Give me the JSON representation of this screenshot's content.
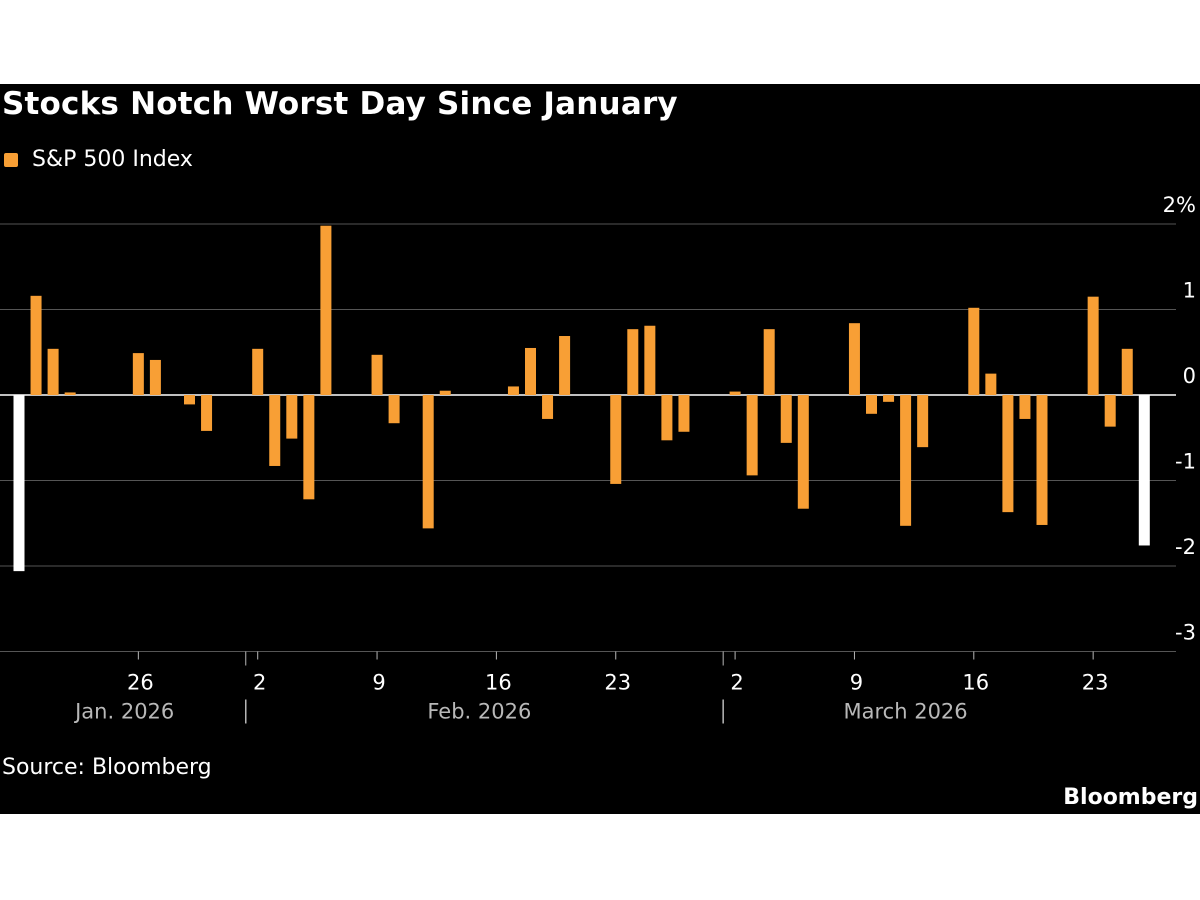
{
  "colors": {
    "background": "#000000",
    "bar": "#f89f35",
    "highlight_bar": "#ffffff",
    "grid": "#555555",
    "text": "#ffffff",
    "subtext": "#b8b8b8"
  },
  "footer": {
    "source": "Source: Bloomberg",
    "brand": "Bloomberg"
  },
  "chart_data": {
    "type": "bar",
    "title": "Stocks Notch Worst Day Since January",
    "legend": [
      {
        "name": "S&P 500 Index",
        "color": "#f89f35"
      }
    ],
    "ylim": [
      -3,
      2
    ],
    "yticks": [
      {
        "value": 2,
        "label": "2%"
      },
      {
        "value": 1,
        "label": "1"
      },
      {
        "value": 0,
        "label": "0"
      },
      {
        "value": -1,
        "label": "-1"
      },
      {
        "value": -2,
        "label": "-2"
      },
      {
        "value": -3,
        "label": "-3"
      }
    ],
    "xticks": [
      {
        "index": 7,
        "label": "26"
      },
      {
        "index": 14,
        "label": "2"
      },
      {
        "index": 21,
        "label": "9"
      },
      {
        "index": 28,
        "label": "16"
      },
      {
        "index": 35,
        "label": "23"
      },
      {
        "index": 42,
        "label": "2"
      },
      {
        "index": 49,
        "label": "9"
      },
      {
        "index": 56,
        "label": "16"
      },
      {
        "index": 63,
        "label": "23"
      }
    ],
    "month_labels": [
      {
        "label": "Jan. 2026",
        "index": 6.2
      },
      {
        "label": "Feb. 2026",
        "index": 27
      },
      {
        "label": "March 2026",
        "index": 52
      }
    ],
    "month_dividers": [
      13,
      41
    ],
    "series": [
      {
        "name": "S&P 500 Index",
        "values": [
          -2.06,
          1.16,
          0.54,
          0.03,
          null,
          null,
          null,
          0.49,
          0.41,
          null,
          -0.11,
          -0.42,
          null,
          null,
          0.54,
          -0.83,
          -0.51,
          -1.22,
          1.98,
          null,
          null,
          0.47,
          -0.33,
          null,
          -1.56,
          0.05,
          null,
          null,
          null,
          0.1,
          0.55,
          -0.28,
          0.69,
          null,
          null,
          -1.04,
          0.77,
          0.81,
          -0.53,
          -0.43,
          null,
          null,
          0.04,
          -0.94,
          0.77,
          -0.56,
          -1.33,
          null,
          null,
          0.84,
          -0.22,
          -0.08,
          -1.53,
          -0.61,
          null,
          null,
          1.02,
          0.25,
          -1.37,
          -0.28,
          -1.52,
          null,
          null,
          1.15,
          -0.37,
          0.54,
          -1.76
        ],
        "highlight_indices": [
          0,
          66
        ]
      }
    ]
  }
}
